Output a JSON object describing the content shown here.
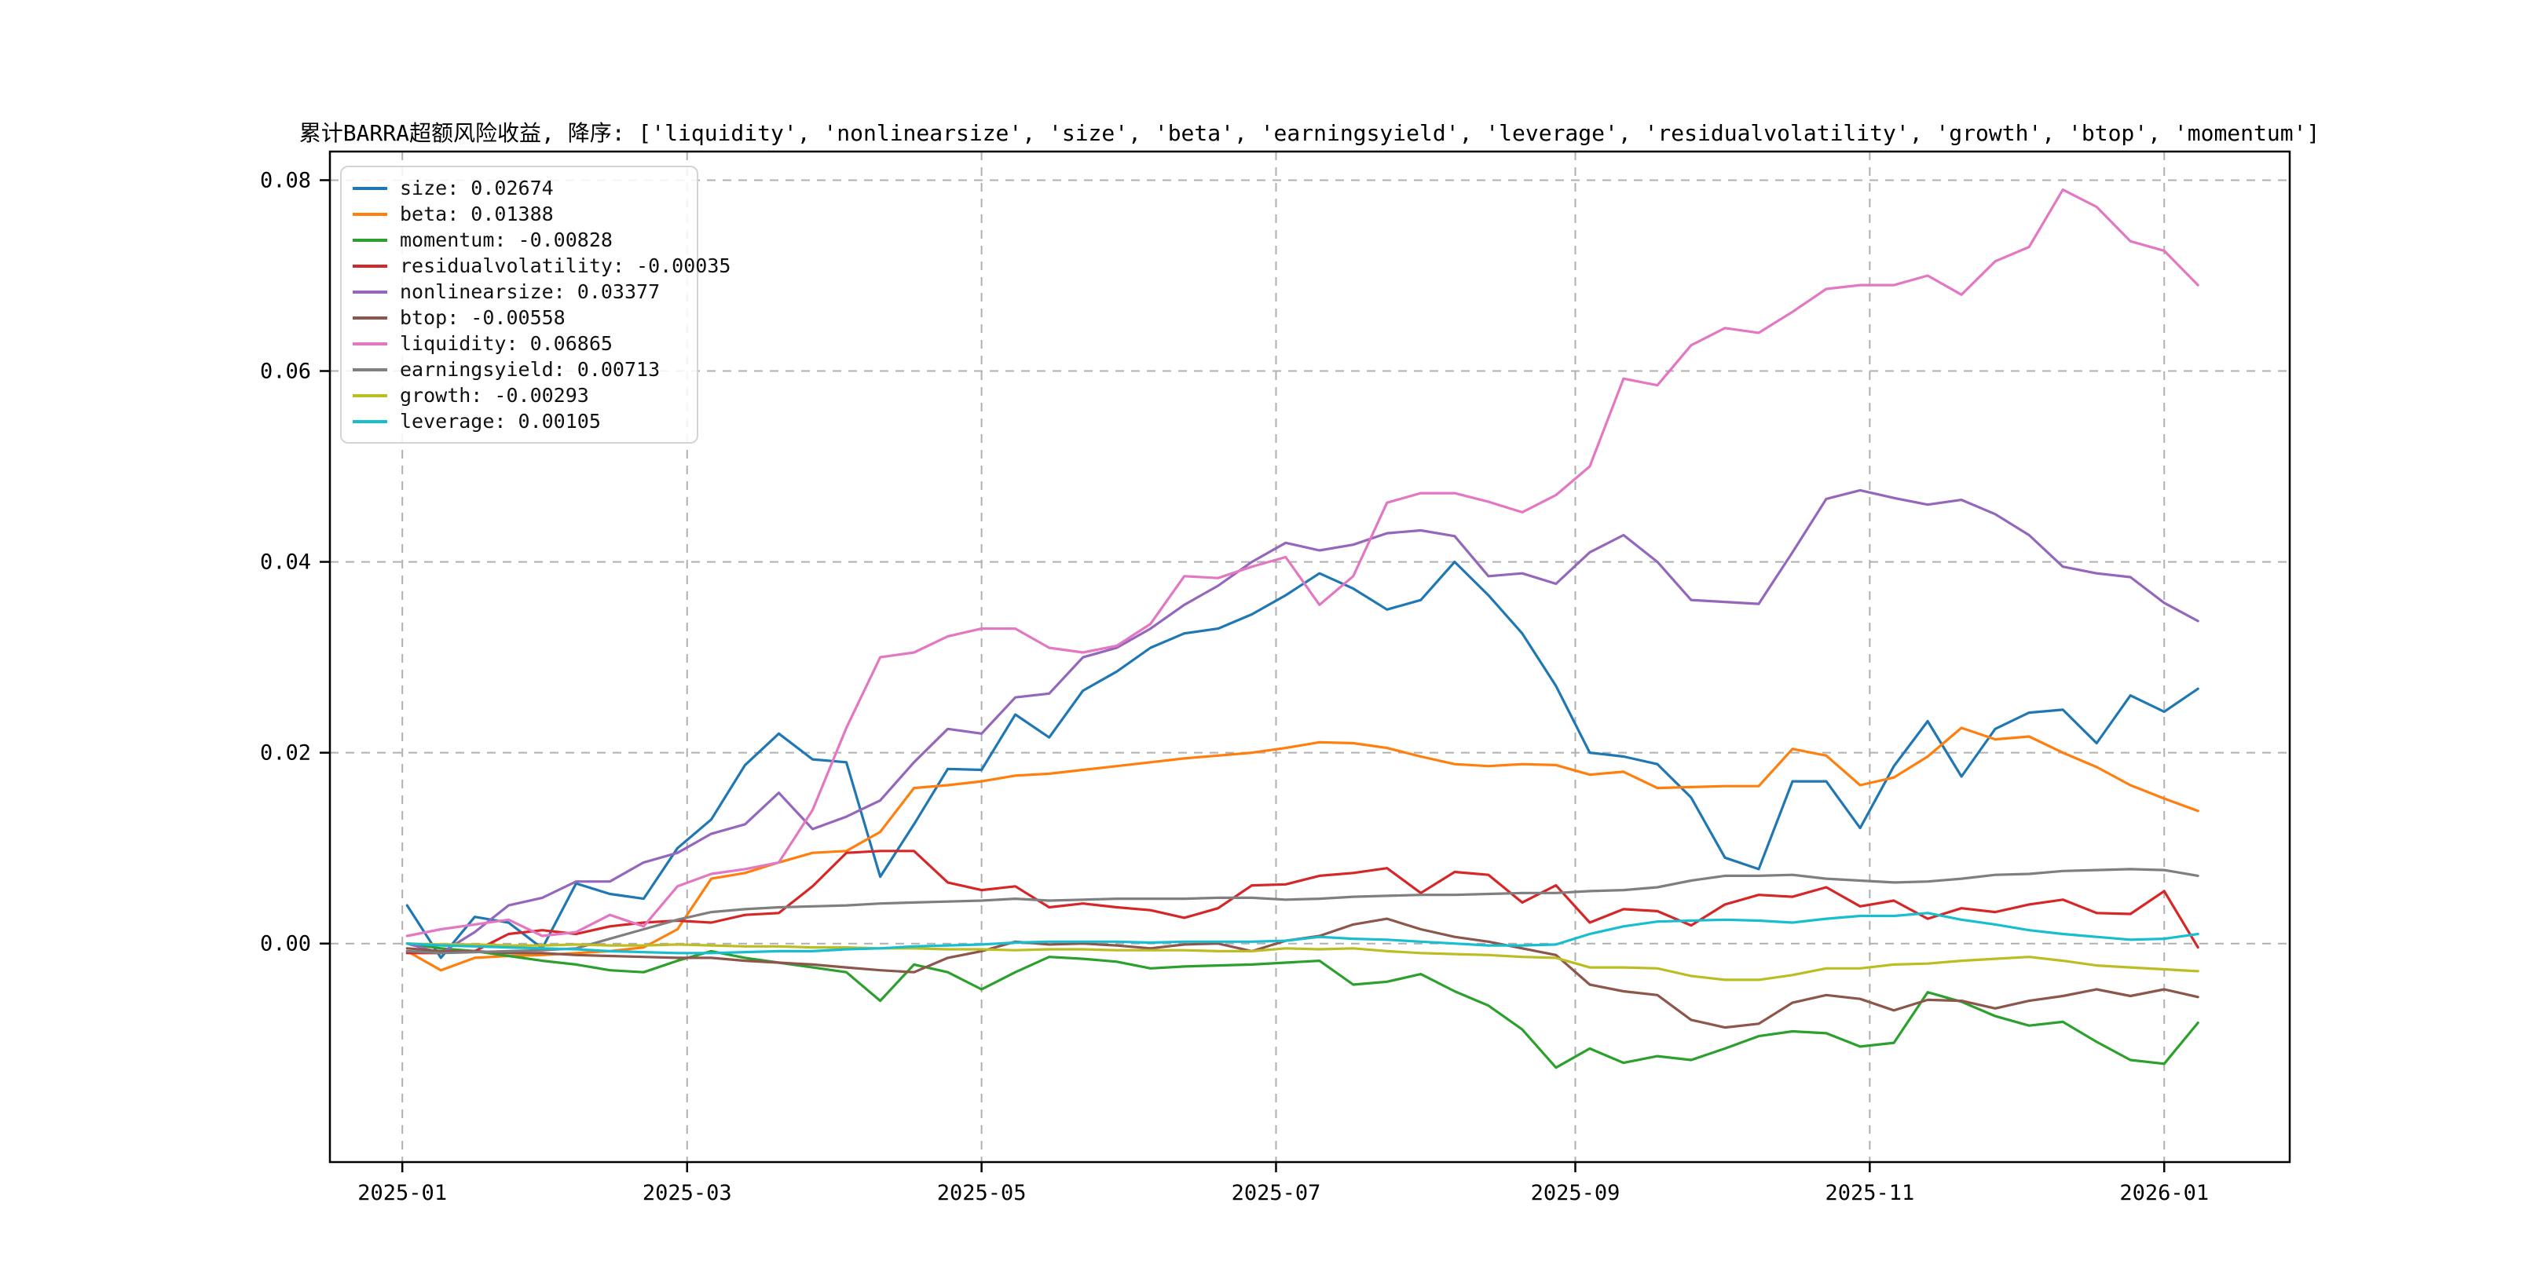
{
  "title": "累计BARRA超额风险收益, 降序: ['liquidity', 'nonlinearsize', 'size', 'beta', 'earningsyield', 'leverage', 'residualvolatility', 'growth', 'btop', 'momentum']",
  "chart_data": {
    "type": "line",
    "title": "累计BARRA超额风险收益, 降序: ['liquidity', 'nonlinearsize', 'size', 'beta', 'earningsyield', 'leverage', 'residualvolatility', 'growth', 'btop', 'momentum']",
    "xlabel": "",
    "ylabel": "",
    "grid": true,
    "grid_color": "#b0b0b0",
    "legend_position": "upper-left",
    "xlim_days": [
      -15,
      391
    ],
    "ylim": [
      -0.0229,
      0.083
    ],
    "x_ticks": [
      {
        "day": 0,
        "label": "2025-01"
      },
      {
        "day": 59,
        "label": "2025-03"
      },
      {
        "day": 120,
        "label": "2025-05"
      },
      {
        "day": 181,
        "label": "2025-07"
      },
      {
        "day": 243,
        "label": "2025-09"
      },
      {
        "day": 304,
        "label": "2025-11"
      },
      {
        "day": 365,
        "label": "2026-01"
      }
    ],
    "y_ticks": [
      {
        "value": 0.0,
        "label": "0.00"
      },
      {
        "value": 0.02,
        "label": "0.02"
      },
      {
        "value": 0.04,
        "label": "0.04"
      },
      {
        "value": 0.06,
        "label": "0.06"
      },
      {
        "value": 0.08,
        "label": "0.08"
      }
    ],
    "days": [
      1,
      8,
      15,
      22,
      29,
      36,
      43,
      50,
      57,
      64,
      71,
      78,
      85,
      92,
      99,
      106,
      113,
      120,
      127,
      134,
      141,
      148,
      155,
      162,
      169,
      176,
      183,
      190,
      197,
      204,
      211,
      218,
      225,
      232,
      239,
      246,
      253,
      260,
      267,
      274,
      281,
      288,
      295,
      302,
      309,
      316,
      323,
      330,
      337,
      344,
      351,
      358,
      365,
      372
    ],
    "series": [
      {
        "name": "size",
        "legend_label": "size: 0.02674",
        "final_value": 0.02674,
        "color": "#1f77b4",
        "values": [
          0.004,
          -0.0015,
          0.0028,
          0.0022,
          -0.0005,
          0.0063,
          0.0052,
          0.0047,
          0.01,
          0.013,
          0.0187,
          0.022,
          0.0193,
          0.019,
          0.007,
          0.0125,
          0.0183,
          0.0182,
          0.024,
          0.0216,
          0.0265,
          0.0285,
          0.031,
          0.0325,
          0.033,
          0.0345,
          0.0365,
          0.0388,
          0.0372,
          0.035,
          0.036,
          0.04,
          0.0365,
          0.0325,
          0.027,
          0.02,
          0.0196,
          0.0188,
          0.0153,
          0.009,
          0.0078,
          0.017,
          0.017,
          0.0121,
          0.0186,
          0.0233,
          0.0175,
          0.0225,
          0.0242,
          0.0245,
          0.021,
          0.026,
          0.0243,
          0.0267
        ]
      },
      {
        "name": "beta",
        "legend_label": "beta: 0.01388",
        "final_value": 0.01388,
        "color": "#ff7f0e",
        "values": [
          -0.0008,
          -0.0028,
          -0.0015,
          -0.0013,
          -0.0012,
          -0.001,
          -0.0008,
          -0.0004,
          0.0015,
          0.0068,
          0.0074,
          0.0085,
          0.0095,
          0.0097,
          0.0117,
          0.0163,
          0.0166,
          0.017,
          0.0176,
          0.0178,
          0.0182,
          0.0186,
          0.019,
          0.0194,
          0.0197,
          0.02,
          0.0205,
          0.0211,
          0.021,
          0.0205,
          0.0196,
          0.0188,
          0.0186,
          0.0188,
          0.0187,
          0.0177,
          0.018,
          0.0163,
          0.0164,
          0.0165,
          0.0165,
          0.0204,
          0.0197,
          0.0166,
          0.0174,
          0.0196,
          0.0226,
          0.0214,
          0.0217,
          0.02,
          0.0185,
          0.0166,
          0.0152,
          0.0139
        ]
      },
      {
        "name": "momentum",
        "legend_label": "momentum: -0.00828",
        "final_value": -0.00828,
        "color": "#2ca02c",
        "values": [
          0.0,
          -0.0005,
          -0.0008,
          -0.0013,
          -0.0018,
          -0.0022,
          -0.0028,
          -0.003,
          -0.0018,
          -0.0008,
          -0.0015,
          -0.002,
          -0.0025,
          -0.003,
          -0.006,
          -0.0022,
          -0.003,
          -0.0048,
          -0.003,
          -0.0014,
          -0.0016,
          -0.0019,
          -0.0026,
          -0.0024,
          -0.0023,
          -0.0022,
          -0.002,
          -0.0018,
          -0.0043,
          -0.004,
          -0.0032,
          -0.005,
          -0.0065,
          -0.009,
          -0.013,
          -0.011,
          -0.0125,
          -0.0118,
          -0.0122,
          -0.011,
          -0.0097,
          -0.0092,
          -0.0094,
          -0.0108,
          -0.0104,
          -0.0051,
          -0.0061,
          -0.0076,
          -0.0086,
          -0.0082,
          -0.0103,
          -0.0122,
          -0.0126,
          -0.0083
        ]
      },
      {
        "name": "residualvolatility",
        "legend_label": "residualvolatility: -0.00035",
        "final_value": -0.00035,
        "color": "#d62728",
        "values": [
          -0.001,
          -0.001,
          -0.0008,
          0.001,
          0.0014,
          0.001,
          0.0018,
          0.0022,
          0.0024,
          0.0022,
          0.003,
          0.0032,
          0.006,
          0.0095,
          0.0097,
          0.0097,
          0.0064,
          0.0056,
          0.006,
          0.0038,
          0.0042,
          0.0038,
          0.0035,
          0.0027,
          0.0037,
          0.0061,
          0.0062,
          0.0071,
          0.0074,
          0.0079,
          0.0053,
          0.0075,
          0.0072,
          0.0043,
          0.0061,
          0.0022,
          0.0036,
          0.0034,
          0.0019,
          0.0041,
          0.0051,
          0.0049,
          0.0059,
          0.0039,
          0.0045,
          0.0026,
          0.0037,
          0.0033,
          0.0041,
          0.0046,
          0.0032,
          0.0031,
          0.0055,
          -0.0004
        ]
      },
      {
        "name": "nonlinearsize",
        "legend_label": "nonlinearsize: 0.03377",
        "final_value": 0.03377,
        "color": "#9467bd",
        "values": [
          0.0,
          -0.001,
          0.0012,
          0.004,
          0.0048,
          0.0065,
          0.0065,
          0.0085,
          0.0095,
          0.0115,
          0.0125,
          0.0158,
          0.012,
          0.0133,
          0.015,
          0.019,
          0.0225,
          0.022,
          0.0258,
          0.0262,
          0.03,
          0.031,
          0.033,
          0.0355,
          0.0375,
          0.04,
          0.042,
          0.0412,
          0.0418,
          0.043,
          0.0433,
          0.0427,
          0.0385,
          0.0388,
          0.0377,
          0.041,
          0.0428,
          0.04,
          0.036,
          0.0358,
          0.0356,
          0.041,
          0.0466,
          0.0475,
          0.0467,
          0.046,
          0.0465,
          0.045,
          0.0428,
          0.0395,
          0.0388,
          0.0384,
          0.0357,
          0.0338
        ]
      },
      {
        "name": "btop",
        "legend_label": "btop: -0.00558",
        "final_value": -0.00558,
        "color": "#8c564b",
        "values": [
          -0.0005,
          -0.0008,
          -0.0008,
          -0.001,
          -0.001,
          -0.0012,
          -0.0013,
          -0.0014,
          -0.0015,
          -0.0015,
          -0.0018,
          -0.002,
          -0.0022,
          -0.0025,
          -0.0028,
          -0.003,
          -0.0015,
          -0.0008,
          0.0002,
          -0.0001,
          0.0,
          -0.0002,
          -0.0005,
          -0.0001,
          0.0,
          -0.0008,
          0.0003,
          0.0008,
          0.002,
          0.0026,
          0.0015,
          0.0007,
          0.0002,
          -0.0005,
          -0.0012,
          -0.0043,
          -0.005,
          -0.0054,
          -0.008,
          -0.0088,
          -0.0084,
          -0.0062,
          -0.0054,
          -0.0058,
          -0.007,
          -0.0059,
          -0.006,
          -0.0068,
          -0.006,
          -0.0055,
          -0.0048,
          -0.0055,
          -0.0048,
          -0.0056
        ]
      },
      {
        "name": "liquidity",
        "legend_label": "liquidity: 0.06865",
        "final_value": 0.06865,
        "color": "#e377c2",
        "values": [
          0.0008,
          0.0015,
          0.002,
          0.0025,
          0.0008,
          0.0012,
          0.003,
          0.0018,
          0.006,
          0.0073,
          0.0078,
          0.0085,
          0.014,
          0.0226,
          0.03,
          0.0305,
          0.0322,
          0.033,
          0.033,
          0.031,
          0.0305,
          0.0312,
          0.0335,
          0.0385,
          0.0383,
          0.0395,
          0.0405,
          0.0355,
          0.0385,
          0.0462,
          0.0472,
          0.0472,
          0.0463,
          0.0452,
          0.047,
          0.05,
          0.0592,
          0.0585,
          0.0627,
          0.0645,
          0.064,
          0.0662,
          0.0686,
          0.069,
          0.069,
          0.07,
          0.068,
          0.0715,
          0.073,
          0.079,
          0.0772,
          0.0736,
          0.0726,
          0.069
        ]
      },
      {
        "name": "earningsyield",
        "legend_label": "earningsyield: 0.00713",
        "final_value": 0.00713,
        "color": "#7f7f7f",
        "values": [
          -0.0008,
          -0.001,
          -0.0009,
          -0.0008,
          -0.0007,
          -0.0005,
          0.0005,
          0.0015,
          0.0025,
          0.0033,
          0.0036,
          0.0038,
          0.0039,
          0.004,
          0.0042,
          0.0043,
          0.0044,
          0.0045,
          0.0047,
          0.0045,
          0.0046,
          0.0047,
          0.0047,
          0.0047,
          0.0048,
          0.0048,
          0.0046,
          0.0047,
          0.0049,
          0.005,
          0.0051,
          0.0051,
          0.0052,
          0.0053,
          0.0053,
          0.0055,
          0.0056,
          0.0059,
          0.0066,
          0.0071,
          0.0071,
          0.0072,
          0.0068,
          0.0066,
          0.0064,
          0.0065,
          0.0068,
          0.0072,
          0.0073,
          0.0076,
          0.0077,
          0.0078,
          0.0077,
          0.0071
        ]
      },
      {
        "name": "growth",
        "legend_label": "growth: -0.00293",
        "final_value": -0.00293,
        "color": "#bcbd22",
        "values": [
          0.0,
          -0.0001,
          -0.0001,
          -0.0002,
          -0.0002,
          -0.0001,
          -0.0002,
          -0.0002,
          -0.0001,
          -0.0002,
          -0.0003,
          -0.0003,
          -0.0004,
          -0.0004,
          -0.0005,
          -0.0005,
          -0.0006,
          -0.0006,
          -0.0007,
          -0.0006,
          -0.0006,
          -0.0007,
          -0.0007,
          -0.0007,
          -0.0008,
          -0.0008,
          -0.0005,
          -0.0006,
          -0.0005,
          -0.0008,
          -0.001,
          -0.0011,
          -0.0012,
          -0.0014,
          -0.0015,
          -0.0025,
          -0.0025,
          -0.0026,
          -0.0034,
          -0.0038,
          -0.0038,
          -0.0033,
          -0.0026,
          -0.0026,
          -0.0022,
          -0.0021,
          -0.0018,
          -0.0016,
          -0.0014,
          -0.0018,
          -0.0023,
          -0.0025,
          -0.0027,
          -0.0029
        ]
      },
      {
        "name": "leverage",
        "legend_label": "leverage: 0.00105",
        "final_value": 0.00105,
        "color": "#17becf",
        "values": [
          0.0,
          -0.0002,
          -0.0003,
          -0.0004,
          -0.0005,
          -0.0006,
          -0.0008,
          -0.0009,
          -0.001,
          -0.001,
          -0.0009,
          -0.0008,
          -0.0008,
          -0.0006,
          -0.0005,
          -0.0003,
          -0.0002,
          -0.0001,
          0.0001,
          0.0002,
          0.0002,
          0.0002,
          0.0001,
          0.0002,
          0.0002,
          0.0002,
          0.0003,
          0.0007,
          0.0005,
          0.0004,
          0.0002,
          0.0,
          -0.0002,
          -0.0002,
          -0.0001,
          0.001,
          0.0018,
          0.0023,
          0.0024,
          0.0025,
          0.0024,
          0.0022,
          0.0026,
          0.0029,
          0.0029,
          0.0032,
          0.0025,
          0.002,
          0.0014,
          0.001,
          0.0007,
          0.0004,
          0.0005,
          0.001
        ]
      }
    ]
  }
}
